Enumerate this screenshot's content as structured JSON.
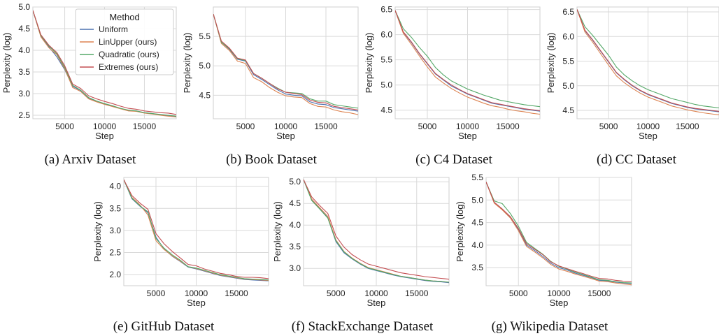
{
  "figure": {
    "legend": {
      "title": "Method",
      "entries": [
        "Uniform",
        "LinUpper (ours)",
        "Quadratic (ours)",
        "Extremes (ours)"
      ]
    },
    "colors": {
      "Uniform": "#4c72b0",
      "LinUpper (ours)": "#dd8452",
      "Quadratic (ours)": "#55a868",
      "Extremes (ours)": "#c44e52",
      "grid": "#d9d9d9",
      "spine": "#cfcfcf"
    }
  },
  "chart_data": [
    {
      "type": "line",
      "caption": "(a) Arxiv Dataset",
      "xlabel": "Step",
      "ylabel": "Perplexity (log)",
      "xlim": [
        1000,
        19000
      ],
      "ylim": [
        2.42,
        5.0
      ],
      "xticks": [
        5000,
        10000,
        15000
      ],
      "yticks": [
        2.5,
        3.0,
        3.5,
        4.0,
        4.5,
        5.0
      ],
      "ytick_labels": [
        "2.5",
        "3.0",
        "3.5",
        "4.0",
        "4.5",
        "5.0"
      ],
      "legend": "top-right",
      "x": [
        1000,
        2000,
        3000,
        4000,
        5000,
        6000,
        7000,
        8000,
        9000,
        10000,
        11000,
        12000,
        13000,
        14000,
        15000,
        16000,
        17000,
        18000,
        19000
      ],
      "series": [
        {
          "name": "Uniform",
          "values": [
            4.92,
            4.33,
            4.08,
            3.85,
            3.55,
            3.17,
            3.07,
            2.9,
            2.82,
            2.76,
            2.71,
            2.66,
            2.61,
            2.6,
            2.56,
            2.54,
            2.51,
            2.49,
            2.47
          ]
        },
        {
          "name": "LinUpper (ours)",
          "values": [
            4.92,
            4.31,
            4.06,
            3.9,
            3.57,
            3.14,
            3.05,
            2.88,
            2.81,
            2.75,
            2.7,
            2.65,
            2.6,
            2.59,
            2.55,
            2.53,
            2.5,
            2.48,
            2.46
          ]
        },
        {
          "name": "Quadratic (ours)",
          "values": [
            4.92,
            4.34,
            4.1,
            3.92,
            3.6,
            3.19,
            3.08,
            2.91,
            2.83,
            2.77,
            2.72,
            2.66,
            2.62,
            2.6,
            2.56,
            2.54,
            2.52,
            2.5,
            2.48
          ]
        },
        {
          "name": "Extremes (ours)",
          "values": [
            4.92,
            4.36,
            4.12,
            3.95,
            3.64,
            3.22,
            3.12,
            2.95,
            2.88,
            2.82,
            2.77,
            2.71,
            2.66,
            2.64,
            2.6,
            2.58,
            2.56,
            2.55,
            2.52
          ]
        }
      ]
    },
    {
      "type": "line",
      "caption": "(b) Book Dataset",
      "xlabel": "Step",
      "ylabel": "Perplexity (log)",
      "xlim": [
        1000,
        19000
      ],
      "ylim": [
        4.1,
        6.0
      ],
      "xticks": [
        5000,
        10000,
        15000
      ],
      "yticks": [
        4.5,
        5.0,
        5.5
      ],
      "ytick_labels": [
        "4.5",
        "5.0",
        "5.5"
      ],
      "x": [
        1000,
        2000,
        3000,
        4000,
        5000,
        6000,
        7000,
        8000,
        9000,
        10000,
        11000,
        12000,
        13000,
        14000,
        15000,
        16000,
        17000,
        18000,
        19000
      ],
      "series": [
        {
          "name": "Uniform",
          "values": [
            5.88,
            5.4,
            5.28,
            5.11,
            5.08,
            4.85,
            4.77,
            4.68,
            4.59,
            4.52,
            4.5,
            4.49,
            4.39,
            4.35,
            4.34,
            4.29,
            4.27,
            4.25,
            4.23
          ]
        },
        {
          "name": "LinUpper (ours)",
          "values": [
            5.88,
            5.38,
            5.26,
            5.08,
            5.04,
            4.8,
            4.73,
            4.63,
            4.55,
            4.49,
            4.47,
            4.46,
            4.36,
            4.31,
            4.3,
            4.25,
            4.22,
            4.2,
            4.17
          ]
        },
        {
          "name": "Quadratic (ours)",
          "values": [
            5.88,
            5.4,
            5.29,
            5.12,
            5.09,
            4.87,
            4.79,
            4.7,
            4.62,
            4.55,
            4.54,
            4.53,
            4.44,
            4.4,
            4.4,
            4.34,
            4.32,
            4.3,
            4.28
          ]
        },
        {
          "name": "Extremes (ours)",
          "values": [
            5.88,
            5.42,
            5.3,
            5.13,
            5.1,
            4.87,
            4.79,
            4.7,
            4.61,
            4.55,
            4.53,
            4.51,
            4.42,
            4.38,
            4.37,
            4.31,
            4.29,
            4.27,
            4.25
          ]
        }
      ]
    },
    {
      "type": "line",
      "caption": "(c) C4 Dataset",
      "xlabel": "Step",
      "ylabel": "Perplexity (log)",
      "xlim": [
        1000,
        19000
      ],
      "ylim": [
        4.33,
        6.55
      ],
      "xticks": [
        5000,
        10000,
        15000
      ],
      "yticks": [
        4.5,
        5.0,
        5.5,
        6.0,
        6.5
      ],
      "ytick_labels": [
        "4.5",
        "5.0",
        "5.5",
        "6.0",
        "6.5"
      ],
      "x": [
        1000,
        2000,
        3000,
        4000,
        5000,
        6000,
        7000,
        8000,
        9000,
        10000,
        11000,
        12000,
        13000,
        14000,
        15000,
        16000,
        17000,
        18000,
        19000
      ],
      "series": [
        {
          "name": "Uniform",
          "values": [
            6.48,
            6.05,
            5.85,
            5.62,
            5.42,
            5.22,
            5.1,
            4.98,
            4.9,
            4.82,
            4.76,
            4.7,
            4.64,
            4.61,
            4.58,
            4.55,
            4.52,
            4.5,
            4.48
          ]
        },
        {
          "name": "LinUpper (ours)",
          "values": [
            6.48,
            6.03,
            5.81,
            5.58,
            5.36,
            5.16,
            5.04,
            4.93,
            4.84,
            4.76,
            4.7,
            4.64,
            4.59,
            4.56,
            4.52,
            4.49,
            4.47,
            4.44,
            4.42
          ]
        },
        {
          "name": "Quadratic (ours)",
          "values": [
            6.48,
            6.12,
            5.95,
            5.75,
            5.57,
            5.35,
            5.2,
            5.08,
            5.0,
            4.92,
            4.86,
            4.8,
            4.75,
            4.7,
            4.67,
            4.64,
            4.61,
            4.59,
            4.57
          ]
        },
        {
          "name": "Extremes (ours)",
          "values": [
            6.48,
            6.06,
            5.86,
            5.63,
            5.43,
            5.23,
            5.11,
            5.0,
            4.91,
            4.83,
            4.77,
            4.71,
            4.65,
            4.62,
            4.59,
            4.56,
            4.53,
            4.51,
            4.49
          ]
        }
      ]
    },
    {
      "type": "line",
      "caption": "(d) CC Dataset",
      "xlabel": "Step",
      "ylabel": "Perplexity (log)",
      "xlim": [
        1000,
        19000
      ],
      "ylim": [
        4.33,
        6.6
      ],
      "xticks": [
        5000,
        10000,
        15000
      ],
      "yticks": [
        4.5,
        5.0,
        5.5,
        6.0,
        6.5
      ],
      "ytick_labels": [
        "4.5",
        "5.0",
        "5.5",
        "6.0",
        "6.5"
      ],
      "x": [
        1000,
        2000,
        3000,
        4000,
        5000,
        6000,
        7000,
        8000,
        9000,
        10000,
        11000,
        12000,
        13000,
        14000,
        15000,
        16000,
        17000,
        18000,
        19000
      ],
      "series": [
        {
          "name": "Uniform",
          "values": [
            6.55,
            6.12,
            5.92,
            5.7,
            5.48,
            5.26,
            5.12,
            5.0,
            4.9,
            4.82,
            4.76,
            4.7,
            4.64,
            4.6,
            4.56,
            4.53,
            4.51,
            4.49,
            4.47
          ]
        },
        {
          "name": "LinUpper (ours)",
          "values": [
            6.55,
            6.09,
            5.88,
            5.65,
            5.42,
            5.2,
            5.06,
            4.95,
            4.85,
            4.77,
            4.71,
            4.65,
            4.59,
            4.55,
            4.51,
            4.48,
            4.45,
            4.43,
            4.41
          ]
        },
        {
          "name": "Quadratic (ours)",
          "values": [
            6.55,
            6.2,
            6.02,
            5.82,
            5.62,
            5.38,
            5.22,
            5.1,
            5.0,
            4.92,
            4.86,
            4.8,
            4.74,
            4.7,
            4.66,
            4.62,
            4.59,
            4.57,
            4.55
          ]
        },
        {
          "name": "Extremes (ours)",
          "values": [
            6.55,
            6.13,
            5.93,
            5.71,
            5.49,
            5.27,
            5.13,
            5.01,
            4.91,
            4.83,
            4.77,
            4.71,
            4.65,
            4.61,
            4.57,
            4.54,
            4.52,
            4.5,
            4.48
          ]
        }
      ]
    },
    {
      "type": "line",
      "caption": "(e) GitHub Dataset",
      "xlabel": "Step",
      "ylabel": "Perplexity (log)",
      "xlim": [
        1000,
        19000
      ],
      "ylim": [
        1.75,
        4.2
      ],
      "xticks": [
        5000,
        10000,
        15000
      ],
      "yticks": [
        2.0,
        2.5,
        3.0,
        3.5,
        4.0
      ],
      "ytick_labels": [
        "2.0",
        "2.5",
        "3.0",
        "3.5",
        "4.0"
      ],
      "x": [
        1000,
        2000,
        3000,
        4000,
        5000,
        6000,
        7000,
        8000,
        9000,
        10000,
        11000,
        12000,
        13000,
        14000,
        15000,
        16000,
        17000,
        18000,
        19000
      ],
      "series": [
        {
          "name": "Uniform",
          "values": [
            4.15,
            3.72,
            3.55,
            3.4,
            2.85,
            2.58,
            2.42,
            2.3,
            2.17,
            2.13,
            2.08,
            2.03,
            1.98,
            1.95,
            1.92,
            1.89,
            1.88,
            1.87,
            1.86
          ]
        },
        {
          "name": "LinUpper (ours)",
          "values": [
            4.15,
            3.75,
            3.58,
            3.35,
            2.77,
            2.57,
            2.43,
            2.31,
            2.18,
            2.14,
            2.09,
            2.04,
            1.99,
            1.96,
            1.93,
            1.9,
            1.89,
            1.88,
            1.87
          ]
        },
        {
          "name": "Quadratic (ours)",
          "values": [
            4.15,
            3.73,
            3.56,
            3.42,
            2.82,
            2.6,
            2.45,
            2.33,
            2.18,
            2.15,
            2.1,
            2.05,
            2.0,
            1.97,
            1.94,
            1.91,
            1.9,
            1.89,
            1.88
          ]
        },
        {
          "name": "Extremes (ours)",
          "values": [
            4.15,
            3.79,
            3.62,
            3.48,
            2.93,
            2.7,
            2.53,
            2.38,
            2.23,
            2.2,
            2.13,
            2.08,
            2.03,
            2.0,
            1.96,
            1.94,
            1.94,
            1.93,
            1.91
          ]
        }
      ]
    },
    {
      "type": "line",
      "caption": "(f) StackExchange Dataset",
      "xlabel": "Step",
      "ylabel": "Perplexity (log)",
      "xlim": [
        1000,
        19000
      ],
      "ylim": [
        2.6,
        5.1
      ],
      "xticks": [
        5000,
        10000,
        15000
      ],
      "yticks": [
        3.0,
        3.5,
        4.0,
        4.5,
        5.0
      ],
      "ytick_labels": [
        "3.0",
        "3.5",
        "4.0",
        "4.5",
        "5.0"
      ],
      "x": [
        1000,
        2000,
        3000,
        4000,
        5000,
        6000,
        7000,
        8000,
        9000,
        10000,
        11000,
        12000,
        13000,
        14000,
        15000,
        16000,
        17000,
        18000,
        19000
      ],
      "series": [
        {
          "name": "Uniform",
          "values": [
            5.05,
            4.58,
            4.38,
            4.17,
            3.62,
            3.36,
            3.22,
            3.1,
            3.0,
            2.95,
            2.9,
            2.85,
            2.81,
            2.78,
            2.75,
            2.72,
            2.7,
            2.69,
            2.67
          ]
        },
        {
          "name": "LinUpper (ours)",
          "values": [
            5.05,
            4.6,
            4.4,
            4.2,
            3.66,
            3.39,
            3.24,
            3.12,
            3.02,
            2.97,
            2.92,
            2.87,
            2.82,
            2.79,
            2.76,
            2.73,
            2.71,
            2.7,
            2.68
          ]
        },
        {
          "name": "Quadratic (ours)",
          "values": [
            5.05,
            4.57,
            4.37,
            4.16,
            3.64,
            3.38,
            3.23,
            3.11,
            3.01,
            2.96,
            2.91,
            2.86,
            2.82,
            2.79,
            2.76,
            2.73,
            2.71,
            2.7,
            2.68
          ]
        },
        {
          "name": "Extremes (ours)",
          "values": [
            5.05,
            4.65,
            4.45,
            4.27,
            3.75,
            3.49,
            3.32,
            3.2,
            3.1,
            3.05,
            3.0,
            2.95,
            2.9,
            2.87,
            2.84,
            2.81,
            2.79,
            2.77,
            2.75
          ]
        }
      ]
    },
    {
      "type": "line",
      "caption": "(g) Wikipedia Dataset",
      "xlabel": "Step",
      "ylabel": "Perplexity (log)",
      "xlim": [
        1000,
        19000
      ],
      "ylim": [
        3.1,
        5.5
      ],
      "xticks": [
        5000,
        10000,
        15000
      ],
      "yticks": [
        3.5,
        4.0,
        4.5,
        5.0,
        5.5
      ],
      "ytick_labels": [
        "3.5",
        "4.0",
        "4.5",
        "5.0",
        "5.5"
      ],
      "x": [
        1000,
        2000,
        3000,
        4000,
        5000,
        6000,
        7000,
        8000,
        9000,
        10000,
        11000,
        12000,
        13000,
        14000,
        15000,
        16000,
        17000,
        18000,
        19000
      ],
      "series": [
        {
          "name": "Uniform",
          "values": [
            5.4,
            4.95,
            4.8,
            4.62,
            4.35,
            4.0,
            3.88,
            3.75,
            3.6,
            3.5,
            3.45,
            3.38,
            3.33,
            3.28,
            3.22,
            3.21,
            3.18,
            3.16,
            3.15
          ]
        },
        {
          "name": "LinUpper (ours)",
          "values": [
            5.4,
            4.93,
            4.78,
            4.6,
            4.32,
            3.97,
            3.85,
            3.72,
            3.57,
            3.47,
            3.42,
            3.36,
            3.31,
            3.26,
            3.2,
            3.19,
            3.16,
            3.14,
            3.12
          ]
        },
        {
          "name": "Quadratic (ours)",
          "values": [
            5.4,
            4.98,
            4.92,
            4.7,
            4.42,
            4.06,
            3.93,
            3.8,
            3.64,
            3.53,
            3.47,
            3.4,
            3.35,
            3.29,
            3.23,
            3.22,
            3.19,
            3.17,
            3.16
          ]
        },
        {
          "name": "Extremes (ours)",
          "values": [
            5.4,
            4.95,
            4.8,
            4.63,
            4.37,
            4.03,
            3.91,
            3.79,
            3.63,
            3.54,
            3.48,
            3.42,
            3.37,
            3.31,
            3.26,
            3.25,
            3.22,
            3.2,
            3.19
          ]
        }
      ]
    }
  ]
}
